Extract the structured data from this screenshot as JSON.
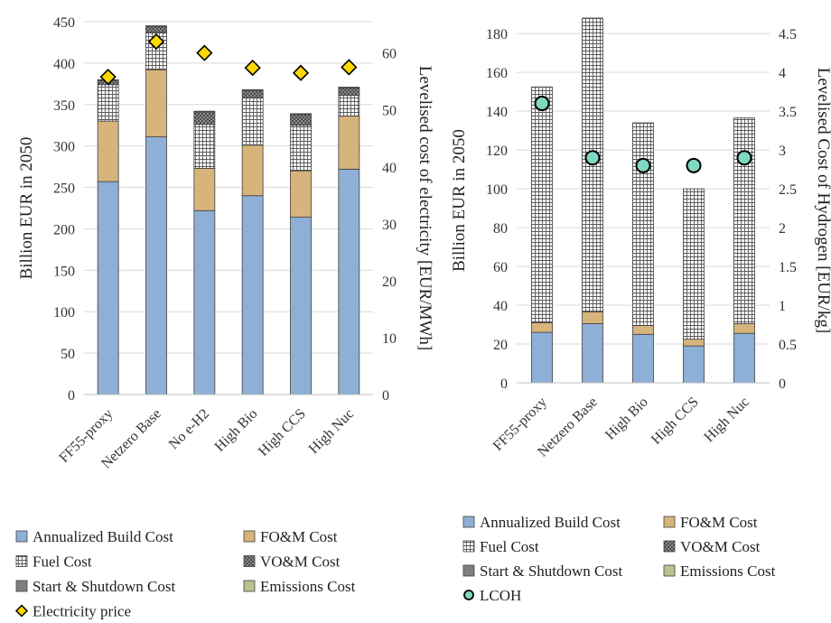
{
  "colors": {
    "build": "#8eafd6",
    "fom": "#d6b47a",
    "fuel_bg": "#ffffff",
    "fuel_line": "#595959",
    "vom": "#5a5a5a",
    "startup": "#7f7f7f",
    "emissions": "#b9c28f",
    "marker_elec": "#ffd800",
    "marker_lcoh": "#7fd8c2",
    "edge": "#404040"
  },
  "legend_left": {
    "items": [
      {
        "label": "Annualized Build Cost",
        "key": "build"
      },
      {
        "label": "FO&M Cost",
        "key": "fom"
      },
      {
        "label": "Fuel Cost",
        "key": "fuel"
      },
      {
        "label": "VO&M Cost",
        "key": "vom"
      },
      {
        "label": "Start & Shutdown Cost",
        "key": "startup"
      },
      {
        "label": "Emissions Cost",
        "key": "emissions"
      },
      {
        "label": "Electricity price",
        "key": "elec_marker"
      }
    ]
  },
  "legend_right": {
    "items": [
      {
        "label": "Annualized Build Cost",
        "key": "build"
      },
      {
        "label": "FO&M Cost",
        "key": "fom"
      },
      {
        "label": "Fuel Cost",
        "key": "fuel"
      },
      {
        "label": "VO&M Cost",
        "key": "vom"
      },
      {
        "label": "Start & Shutdown Cost",
        "key": "startup"
      },
      {
        "label": "Emissions Cost",
        "key": "emissions"
      },
      {
        "label": "LCOH",
        "key": "lcoh_marker"
      }
    ]
  },
  "chart_data": [
    {
      "type": "bar",
      "stacked": true,
      "categories": [
        "FF55-proxy",
        "Netzero Base",
        "No e-H2",
        "High Bio",
        "High CCS",
        "High Nuc"
      ],
      "ylabel": "Billion EUR in 2050",
      "ylim": [
        0,
        450
      ],
      "yticks": [
        0,
        50,
        100,
        150,
        200,
        250,
        300,
        350,
        400,
        450
      ],
      "y2label": "Levelised cost of electricity [EUR/MWh]",
      "y2lim": [
        0,
        65.5
      ],
      "y2ticks": [
        0,
        10,
        20,
        30,
        40,
        50,
        60
      ],
      "grid": true,
      "series": [
        {
          "name": "Annualized Build Cost",
          "values": [
            257,
            311,
            222,
            240,
            214,
            272
          ]
        },
        {
          "name": "FO&M Cost",
          "values": [
            73,
            81,
            51,
            61,
            56,
            64
          ]
        },
        {
          "name": "Fuel Cost",
          "values": [
            44,
            45,
            53,
            57,
            55,
            25
          ]
        },
        {
          "name": "VO&M Cost",
          "values": [
            5,
            7,
            15,
            9,
            13,
            9
          ]
        },
        {
          "name": "Start & Shutdown Cost",
          "values": [
            1,
            1,
            1,
            1,
            1,
            1
          ]
        },
        {
          "name": "Emissions Cost",
          "values": [
            0,
            0,
            0,
            0,
            0,
            0
          ]
        }
      ],
      "markers": {
        "name": "Electricity price",
        "values": [
          55.8,
          62.0,
          60.0,
          57.4,
          56.5,
          57.5
        ]
      }
    },
    {
      "type": "bar",
      "stacked": true,
      "categories": [
        "FF55-proxy",
        "Netzero Base",
        "High Bio",
        "High CCS",
        "High Nuc"
      ],
      "ylabel": "Billion EUR in 2050",
      "ylim": [
        0,
        188
      ],
      "yticks": [
        0,
        20,
        40,
        60,
        80,
        100,
        120,
        140,
        160,
        180
      ],
      "y2label": "Levelised Cost of Hydrogen [EUR/kg]",
      "y2lim": [
        0,
        4.7
      ],
      "y2ticks": [
        0,
        0.5,
        1,
        1.5,
        2,
        2.5,
        3,
        3.5,
        4,
        4.5
      ],
      "grid": true,
      "series": [
        {
          "name": "Annualized Build Cost",
          "values": [
            26,
            30.5,
            25,
            19,
            25.5
          ]
        },
        {
          "name": "FO&M Cost",
          "values": [
            5,
            6,
            4.5,
            3.5,
            5
          ]
        },
        {
          "name": "Fuel Cost",
          "values": [
            121.5,
            151.5,
            104.5,
            77.5,
            106
          ]
        },
        {
          "name": "VO&M Cost",
          "values": [
            0,
            0,
            0,
            0,
            0
          ]
        },
        {
          "name": "Start & Shutdown Cost",
          "values": [
            0,
            0,
            0,
            0,
            0
          ]
        },
        {
          "name": "Emissions Cost",
          "values": [
            0,
            0,
            0,
            0,
            0
          ]
        }
      ],
      "markers": {
        "name": "LCOH",
        "values": [
          3.6,
          2.9,
          2.8,
          2.8,
          2.9
        ]
      }
    }
  ]
}
